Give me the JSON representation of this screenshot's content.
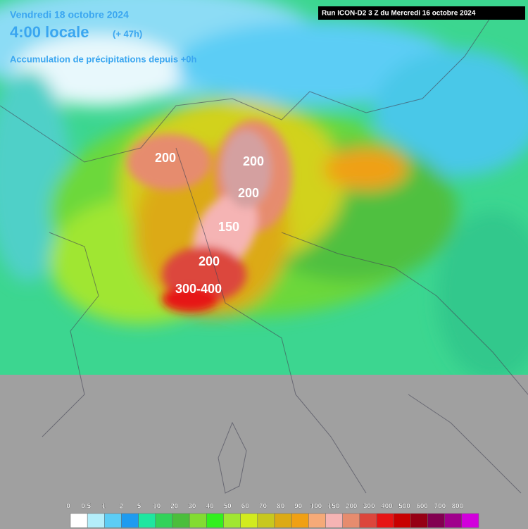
{
  "header": {
    "date": "Vendredi 18 octobre 2024",
    "time": "4:00 locale",
    "lead": "(+ 47h)",
    "subtitle": "Accumulation de précipitations depuis +0h",
    "run": "Run ICON-D2 3 Z du Mercredi 16 octobre 2024"
  },
  "annotations": [
    "200",
    "200",
    "200",
    "150",
    "200",
    "300-400"
  ],
  "legend": {
    "labels": [
      "0",
      "0.5",
      "1",
      "2",
      "5",
      "10",
      "20",
      "30",
      "40",
      "50",
      "60",
      "70",
      "80",
      "90",
      "100",
      "150",
      "200",
      "300",
      "400",
      "500",
      "600",
      "700",
      "800"
    ],
    "colors": [
      "#ffffff",
      "#b4eefa",
      "#5ccdf5",
      "#1e9bf0",
      "#1ee6a0",
      "#32d25a",
      "#4bbe3c",
      "#82dc32",
      "#32f01e",
      "#a0e632",
      "#d2eb1e",
      "#c8c81e",
      "#dcaa14",
      "#f0a014",
      "#f5aa78",
      "#f5b4b4",
      "#e68c6e",
      "#dc463c",
      "#e61414",
      "#c80000",
      "#960014",
      "#820050",
      "#a0008c",
      "#d200dc"
    ]
  }
}
